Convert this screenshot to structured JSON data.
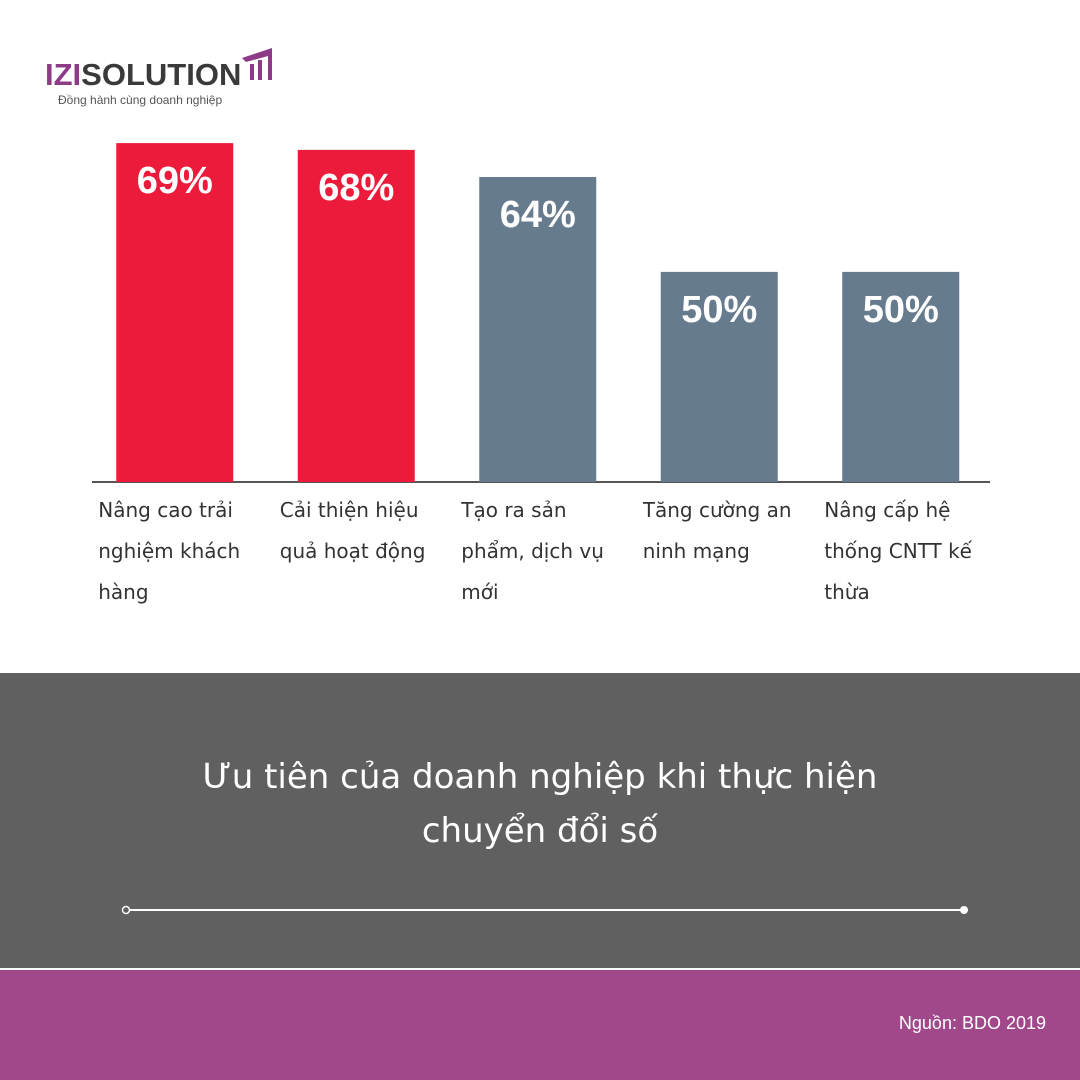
{
  "logo": {
    "brand_first": "IZI",
    "brand_rest": "SOLUTION",
    "tagline": "Đồng hành cùng doanh nghiệp"
  },
  "chart_data": {
    "type": "bar",
    "title": "Ưu tiên của doanh nghiệp khi thực hiện chuyển đổi số",
    "categories": [
      "Nâng cao trải nghiệm khách hàng",
      "Cải thiện hiệu quả hoạt động",
      "Tạo ra sản phẩm, dịch vụ mới",
      "Tăng cường an ninh mạng",
      "Nâng cấp hệ thống CNTT kế thừa"
    ],
    "values": [
      69,
      68,
      64,
      50,
      50
    ],
    "value_labels": [
      "69%",
      "68%",
      "64%",
      "50%",
      "50%"
    ],
    "colors": [
      "#ec1b3c",
      "#ec1b3c",
      "#677b8e",
      "#677b8e",
      "#677b8e"
    ],
    "ylim": [
      19,
      73
    ]
  },
  "source": "Nguồn: BDO  2019"
}
